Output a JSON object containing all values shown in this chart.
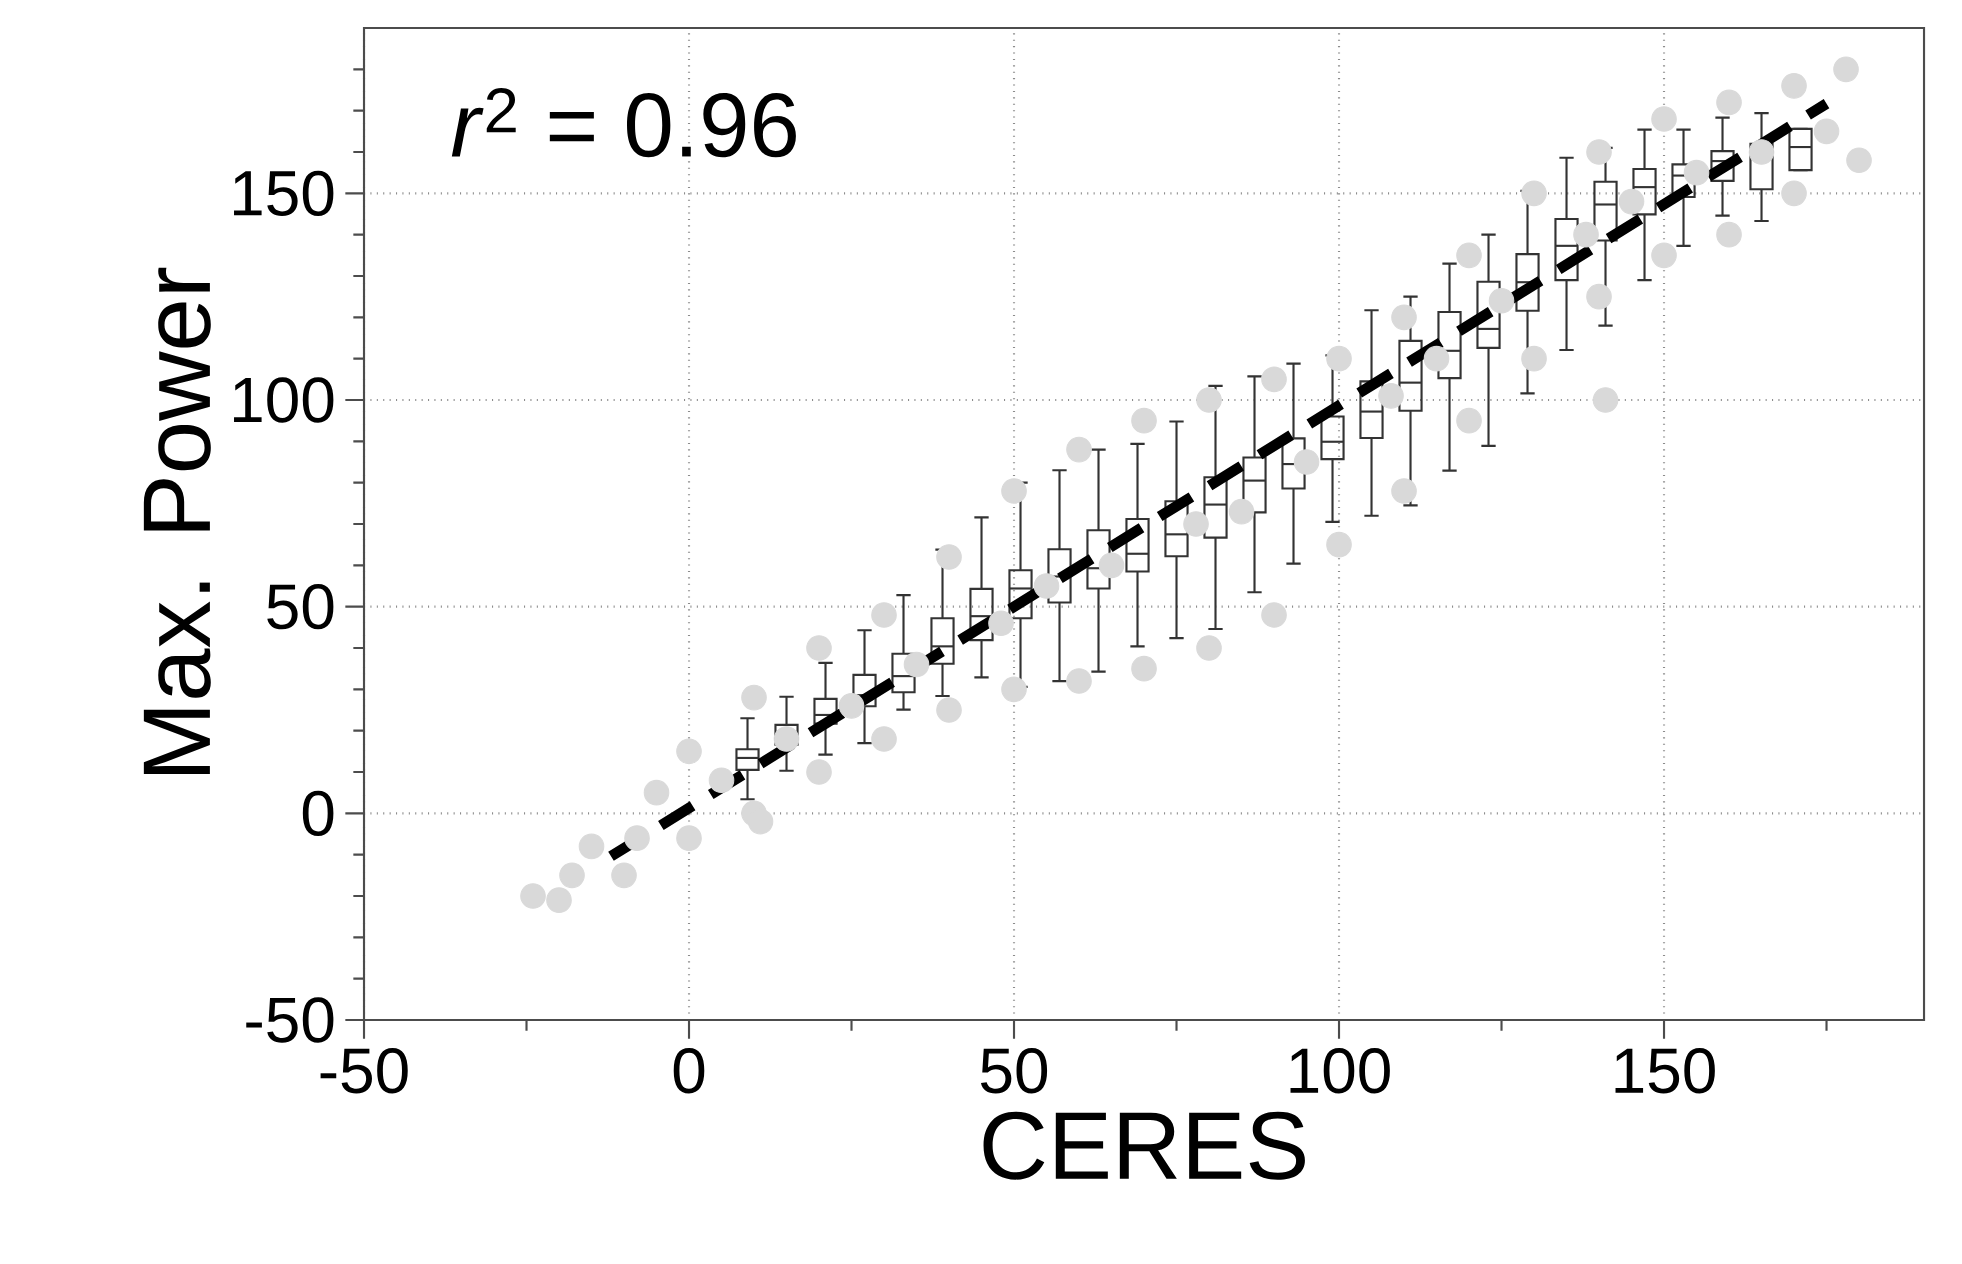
{
  "chart_data": {
    "type": "scatter",
    "xlabel": "CERES",
    "ylabel": "Max. Power",
    "xlim": [
      -50,
      190
    ],
    "ylim": [
      -50,
      190
    ],
    "xticks": [
      -50,
      {
        "value": -25,
        "label": null
      },
      0,
      {
        "value": 25,
        "label": null
      },
      50,
      {
        "value": 75,
        "label": null
      },
      100,
      {
        "value": 125,
        "label": null
      },
      150,
      {
        "value": 175,
        "label": null
      }
    ],
    "yticks": [
      -50,
      {
        "value": -40,
        "label": null
      },
      {
        "value": -30,
        "label": null
      },
      {
        "value": -20,
        "label": null
      },
      {
        "value": -10,
        "label": null
      },
      0,
      {
        "value": 10,
        "label": null
      },
      {
        "value": 20,
        "label": null
      },
      {
        "value": 30,
        "label": null
      },
      {
        "value": 40,
        "label": null
      },
      50,
      {
        "value": 60,
        "label": null
      },
      {
        "value": 70,
        "label": null
      },
      {
        "value": 80,
        "label": null
      },
      {
        "value": 90,
        "label": null
      },
      100,
      {
        "value": 110,
        "label": null
      },
      {
        "value": 120,
        "label": null
      },
      {
        "value": 130,
        "label": null
      },
      {
        "value": 140,
        "label": null
      },
      150,
      {
        "value": 160,
        "label": null
      },
      {
        "value": 170,
        "label": null
      },
      {
        "value": 180,
        "label": null
      }
    ],
    "grid": true,
    "annotations": [
      "*r*$^{2}$ = 0.96"
    ],
    "series": [
      {
        "color": "#d9d9d9",
        "marker": "circle",
        "x": [
          -24,
          -15,
          -5,
          0,
          10,
          20,
          30,
          40,
          50,
          60,
          70,
          80,
          90,
          100,
          110,
          120,
          130,
          140,
          150,
          160,
          170,
          178,
          -20,
          -10,
          0,
          10,
          20,
          30,
          40,
          50,
          60,
          70,
          80,
          90,
          100,
          110,
          120,
          130,
          140,
          150,
          160,
          170,
          180,
          -18,
          -8,
          5,
          15,
          25,
          35,
          48,
          55,
          65,
          78,
          85,
          95,
          108,
          115,
          125,
          138,
          145,
          155,
          165,
          175,
          11,
          141
        ],
        "values": [
          -20,
          -8,
          5,
          15,
          28,
          40,
          48,
          62,
          78,
          88,
          95,
          100,
          105,
          110,
          120,
          135,
          150,
          160,
          168,
          172,
          176,
          180,
          -21,
          -15,
          -6,
          0,
          10,
          18,
          25,
          30,
          32,
          35,
          40,
          48,
          65,
          78,
          95,
          110,
          125,
          135,
          140,
          150,
          158,
          -15,
          -6,
          8,
          18,
          26,
          36,
          46,
          55,
          60,
          70,
          73,
          85,
          101,
          110,
          124,
          140,
          148,
          155,
          160,
          165,
          -2,
          100
        ]
      },
      {
        "type": "box",
        "color": "#333333",
        "x": [
          9,
          15,
          21,
          27,
          33,
          39,
          45,
          51,
          57,
          63,
          69,
          75,
          81,
          87,
          93,
          99,
          105,
          111,
          117,
          123,
          129,
          135,
          141,
          147,
          153,
          159,
          165,
          171
        ],
        "boxes": [
          {
            "low": 3.4,
            "q1": 10.5,
            "median": 13.4,
            "q3": 15.5,
            "high": 23
          },
          {
            "low": 10.3,
            "q1": 16.6,
            "median": 19,
            "q3": 21.4,
            "high": 28.2
          },
          {
            "low": 14.2,
            "q1": 21.7,
            "median": 23.8,
            "q3": 27.7,
            "high": 36.4
          },
          {
            "low": 17,
            "q1": 25.9,
            "median": 28.6,
            "q3": 33.5,
            "high": 44.3
          },
          {
            "low": 25.1,
            "q1": 29.3,
            "median": 33.2,
            "q3": 38.6,
            "high": 52.8
          },
          {
            "low": 28.4,
            "q1": 36.2,
            "median": 40.4,
            "q3": 47.2,
            "high": 63.8
          },
          {
            "low": 32.9,
            "q1": 41.9,
            "median": 47.7,
            "q3": 54.3,
            "high": 71.6
          },
          {
            "low": 30.6,
            "q1": 47.2,
            "median": 54.4,
            "q3": 58.8,
            "high": 80
          },
          {
            "low": 32,
            "q1": 51,
            "median": 57.3,
            "q3": 63.9,
            "high": 83
          },
          {
            "low": 34.3,
            "q1": 54.4,
            "median": 59.3,
            "q3": 68.5,
            "high": 88
          },
          {
            "low": 40.4,
            "q1": 58.5,
            "median": 62.8,
            "q3": 71.2,
            "high": 89.4
          },
          {
            "low": 42.4,
            "q1": 62.2,
            "median": 67.5,
            "q3": 75.5,
            "high": 94.8
          },
          {
            "low": 44.6,
            "q1": 66.7,
            "median": 74.7,
            "q3": 81.3,
            "high": 103.4
          },
          {
            "low": 53.5,
            "q1": 72.8,
            "median": 80.5,
            "q3": 86.1,
            "high": 105.7
          },
          {
            "low": 60.4,
            "q1": 78.6,
            "median": 84.5,
            "q3": 90.7,
            "high": 108.8
          },
          {
            "low": 70.5,
            "q1": 85.7,
            "median": 89.9,
            "q3": 96,
            "high": 110.8
          },
          {
            "low": 72,
            "q1": 90.8,
            "median": 97.2,
            "q3": 104.5,
            "high": 121.7
          },
          {
            "low": 74.5,
            "q1": 97.4,
            "median": 104.2,
            "q3": 114.3,
            "high": 125
          },
          {
            "low": 82.9,
            "q1": 105.3,
            "median": 111.9,
            "q3": 121.3,
            "high": 133
          },
          {
            "low": 88.9,
            "q1": 112.6,
            "median": 117.2,
            "q3": 128.6,
            "high": 140
          },
          {
            "low": 101.6,
            "q1": 121.6,
            "median": 128.5,
            "q3": 135.3,
            "high": 150.6
          },
          {
            "low": 112.1,
            "q1": 129,
            "median": 137.3,
            "q3": 143.8,
            "high": 158.6
          },
          {
            "low": 118,
            "q1": 138.6,
            "median": 147.3,
            "q3": 152.8,
            "high": 161
          },
          {
            "low": 129,
            "q1": 144.9,
            "median": 151.5,
            "q3": 155.9,
            "high": 165.4
          },
          {
            "low": 137.3,
            "q1": 149.1,
            "median": 154.3,
            "q3": 157,
            "high": 165.4
          },
          {
            "low": 144.6,
            "q1": 153,
            "median": 157.8,
            "q3": 160.2,
            "high": 168.3
          },
          {
            "low": 143.3,
            "q1": 151,
            "median": 158.9,
            "q3": 162,
            "high": 169.4
          },
          {
            "low": 155.6,
            "q1": 155.6,
            "median": 161.2,
            "q3": 165.6,
            "high": 165.6
          }
        ]
      },
      {
        "type": "line",
        "color": "#000000",
        "line_style": "dashed",
        "marker": "none",
        "x": [
          -12,
          175
        ],
        "values": [
          -10.4,
          171.7
        ]
      }
    ]
  }
}
